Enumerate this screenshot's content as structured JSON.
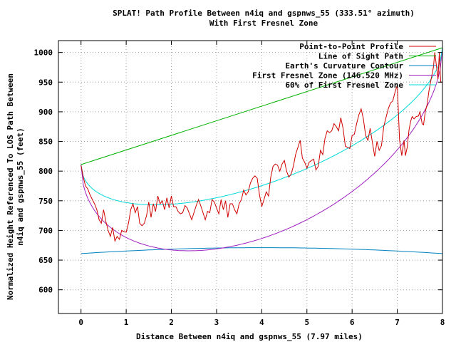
{
  "chart_data": {
    "type": "line",
    "title": "SPLAT! Path Profile Between n4iq and gspnws_55 (333.51° azimuth)",
    "subtitle": "With First Fresnel Zone",
    "xlabel": "Distance Between n4iq and gspnws_55 (7.97 miles)",
    "ylabel_line1": "Normalized Height Referenced To LOS Path Between",
    "ylabel_line2": "n4iq and gspnws_55 (feet)",
    "xlim": [
      -0.5,
      8
    ],
    "ylim": [
      560,
      1020
    ],
    "xticks": [
      0,
      1,
      2,
      3,
      4,
      5,
      6,
      7,
      8
    ],
    "yticks": [
      600,
      650,
      700,
      750,
      800,
      850,
      900,
      950,
      1000
    ],
    "grid": true,
    "legend_position": "top-right",
    "series": [
      {
        "name": "Point-to-Point Profile",
        "color": "#d00000",
        "x": [
          0,
          0.05,
          0.1,
          0.15,
          0.2,
          0.25,
          0.3,
          0.35,
          0.4,
          0.45,
          0.5,
          0.55,
          0.6,
          0.65,
          0.7,
          0.75,
          0.8,
          0.85,
          0.9,
          0.95,
          1.0,
          1.05,
          1.1,
          1.15,
          1.2,
          1.25,
          1.3,
          1.35,
          1.4,
          1.45,
          1.5,
          1.55,
          1.6,
          1.65,
          1.7,
          1.75,
          1.8,
          1.85,
          1.9,
          1.95,
          2.0,
          2.05,
          2.1,
          2.15,
          2.2,
          2.25,
          2.3,
          2.35,
          2.4,
          2.45,
          2.5,
          2.55,
          2.6,
          2.65,
          2.7,
          2.75,
          2.8,
          2.85,
          2.9,
          2.95,
          3.0,
          3.05,
          3.1,
          3.15,
          3.2,
          3.25,
          3.3,
          3.35,
          3.4,
          3.45,
          3.5,
          3.55,
          3.6,
          3.65,
          3.7,
          3.75,
          3.8,
          3.85,
          3.9,
          3.95,
          4.0,
          4.05,
          4.1,
          4.15,
          4.2,
          4.25,
          4.3,
          4.35,
          4.4,
          4.45,
          4.5,
          4.55,
          4.6,
          4.65,
          4.7,
          4.75,
          4.8,
          4.85,
          4.9,
          4.95,
          5.0,
          5.05,
          5.1,
          5.15,
          5.2,
          5.25,
          5.3,
          5.35,
          5.4,
          5.45,
          5.5,
          5.55,
          5.6,
          5.65,
          5.7,
          5.75,
          5.8,
          5.85,
          5.9,
          5.95,
          6.0,
          6.05,
          6.1,
          6.15,
          6.2,
          6.25,
          6.3,
          6.35,
          6.4,
          6.45,
          6.5,
          6.55,
          6.6,
          6.65,
          6.7,
          6.75,
          6.8,
          6.85,
          6.9,
          6.95,
          7.0,
          7.05,
          7.1,
          7.15,
          7.2,
          7.25,
          7.3,
          7.35,
          7.4,
          7.45,
          7.5,
          7.55,
          7.6,
          7.65,
          7.7,
          7.75,
          7.8,
          7.85,
          7.9,
          7.95,
          8.0
        ],
        "values": [
          810,
          790,
          775,
          770,
          760,
          752,
          745,
          735,
          718,
          712,
          735,
          715,
          700,
          690,
          705,
          682,
          690,
          685,
          700,
          698,
          697,
          712,
          735,
          745,
          730,
          740,
          712,
          708,
          712,
          725,
          748,
          722,
          745,
          732,
          758,
          745,
          750,
          735,
          755,
          738,
          758,
          740,
          740,
          732,
          728,
          730,
          742,
          738,
          728,
          718,
          730,
          742,
          752,
          742,
          730,
          718,
          732,
          730,
          752,
          748,
          738,
          728,
          752,
          735,
          750,
          722,
          745,
          745,
          735,
          728,
          745,
          752,
          768,
          760,
          765,
          780,
          788,
          792,
          788,
          760,
          740,
          752,
          765,
          758,
          790,
          808,
          812,
          810,
          800,
          812,
          818,
          800,
          790,
          795,
          808,
          828,
          840,
          852,
          822,
          815,
          805,
          815,
          818,
          820,
          802,
          808,
          835,
          828,
          855,
          868,
          865,
          868,
          880,
          875,
          868,
          890,
          872,
          842,
          840,
          838,
          860,
          862,
          880,
          895,
          905,
          888,
          860,
          852,
          872,
          848,
          825,
          850,
          835,
          843,
          875,
          890,
          905,
          915,
          918,
          933,
          945,
          852,
          826,
          850,
          872,
          885,
          892,
          875,
          906,
          895,
          912,
          918,
          905,
          935,
          960,
          975,
          955,
          1000,
          950,
          1004,
          950
        ],
        "x_ext": [
          7.15,
          7.18,
          7.22,
          7.26,
          7.3,
          7.33,
          7.37,
          7.42,
          7.47,
          7.5,
          7.55,
          7.58,
          7.62,
          7.66,
          7.7,
          7.75,
          7.8,
          7.83,
          7.87,
          7.9,
          7.93,
          7.96,
          8.0
        ],
        "values_ext": [
          852,
          826,
          840,
          870,
          885,
          892,
          888,
          892,
          893,
          900,
          880,
          878,
          900,
          912,
          935,
          955,
          975,
          1000,
          975,
          955,
          1000,
          950,
          950
        ]
      },
      {
        "name": "Line of Sight Path",
        "color": "#00b000",
        "line": {
          "x0": 0,
          "y0": 811,
          "x1": 8,
          "y1": 1008
        }
      },
      {
        "name": "Earth's Curvature Contour",
        "color": "#0080c0",
        "curve": {
          "type": "parabola",
          "x0": 0,
          "x1": 8,
          "y_ends": 661,
          "y_mid": 671
        }
      },
      {
        "name": "First Fresnel Zone (146.520 MHz)",
        "color": "#a020c0",
        "fresnel": {
          "d": 8,
          "r_mid": 223
        }
      },
      {
        "name": "60% of First Fresnel Zone",
        "color": "#00d8d8",
        "fresnel": {
          "d": 8,
          "r_mid": 134
        }
      }
    ]
  }
}
